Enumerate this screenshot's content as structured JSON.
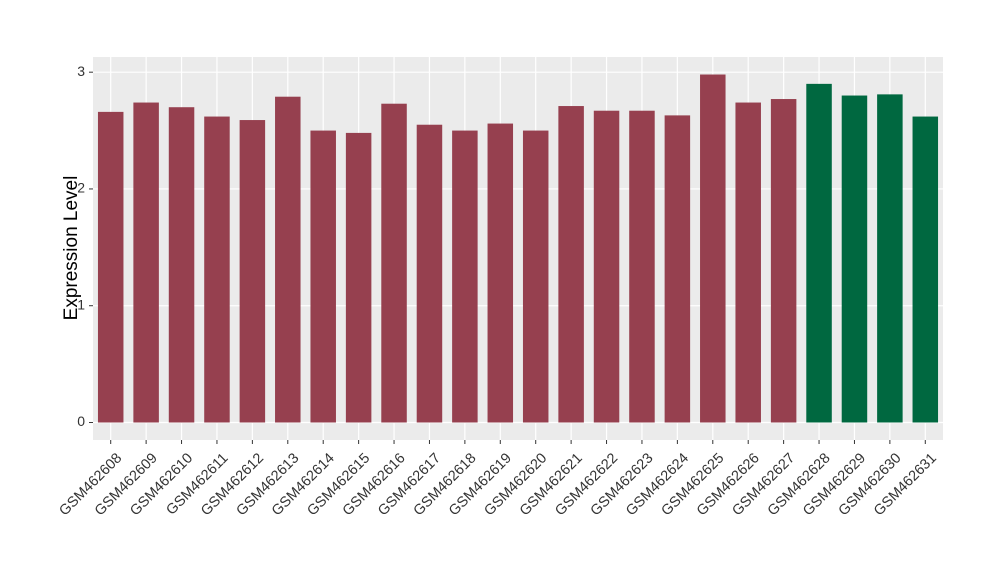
{
  "chart_data": {
    "type": "bar",
    "y_label": "Expression Level",
    "categories": [
      "GSM462608",
      "GSM462609",
      "GSM462610",
      "GSM462611",
      "GSM462612",
      "GSM462613",
      "GSM462614",
      "GSM462615",
      "GSM462616",
      "GSM462617",
      "GSM462618",
      "GSM462619",
      "GSM462620",
      "GSM462621",
      "GSM462622",
      "GSM462623",
      "GSM462624",
      "GSM462625",
      "GSM462626",
      "GSM462627",
      "GSM462628",
      "GSM462629",
      "GSM462630",
      "GSM462631"
    ],
    "values": [
      2.66,
      2.74,
      2.7,
      2.62,
      2.59,
      2.79,
      2.5,
      2.48,
      2.73,
      2.55,
      2.5,
      2.56,
      2.5,
      2.71,
      2.67,
      2.67,
      2.63,
      2.98,
      2.74,
      2.77,
      2.9,
      2.8,
      2.81,
      2.62
    ],
    "colors": [
      "#96404f",
      "#96404f",
      "#96404f",
      "#96404f",
      "#96404f",
      "#96404f",
      "#96404f",
      "#96404f",
      "#96404f",
      "#96404f",
      "#96404f",
      "#96404f",
      "#96404f",
      "#96404f",
      "#96404f",
      "#96404f",
      "#96404f",
      "#96404f",
      "#96404f",
      "#96404f",
      "#006840",
      "#006840",
      "#006840",
      "#006840"
    ],
    "ylim": [
      -0.15,
      3.13
    ],
    "yticks": [
      0,
      1,
      2,
      3
    ],
    "grid": true
  }
}
